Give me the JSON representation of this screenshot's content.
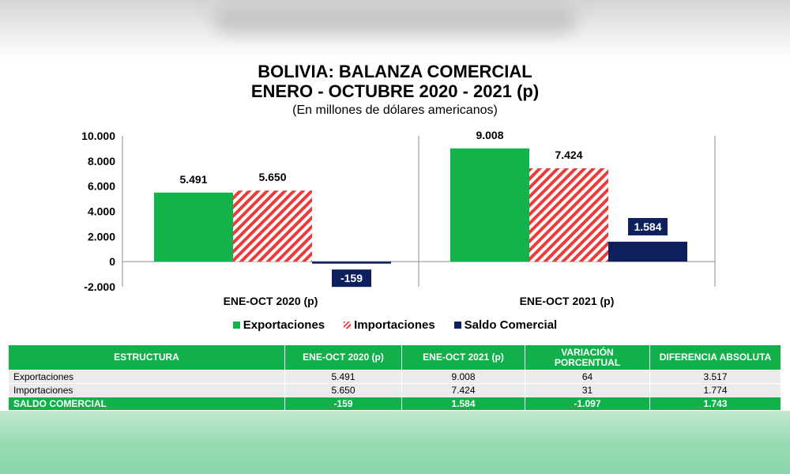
{
  "header": {
    "title_line1": "BOLIVIA: BALANZA COMERCIAL",
    "title_line2": "ENERO - OCTUBRE 2020 - 2021 (p)",
    "subtitle": "(En millones de dólares americanos)"
  },
  "chart_data": {
    "type": "bar",
    "categories": [
      "ENE-OCT 2020 (p)",
      "ENE-OCT 2021 (p)"
    ],
    "series": [
      {
        "name": "Exportaciones",
        "values": [
          5491,
          9008
        ],
        "labels": [
          "5.491",
          "9.008"
        ],
        "color": "#13b34b",
        "pattern": "solid"
      },
      {
        "name": "Importaciones",
        "values": [
          5650,
          7424
        ],
        "labels": [
          "5.650",
          "7.424"
        ],
        "color": "#ec3b3b",
        "pattern": "hatched"
      },
      {
        "name": "Saldo Comercial",
        "values": [
          -159,
          1584
        ],
        "labels": [
          "-159",
          "1.584"
        ],
        "color": "#0d1f5c",
        "pattern": "solid"
      }
    ],
    "ylim": [
      -2000,
      10000
    ],
    "yticks": [
      10000,
      8000,
      6000,
      4000,
      2000,
      0,
      -2000
    ],
    "ytick_labels": [
      "10.000",
      "8.000",
      "6.000",
      "4.000",
      "2.000",
      "0",
      "-2.000"
    ],
    "legend_position": "bottom",
    "grid": false
  },
  "table": {
    "headers": [
      "ESTRUCTURA",
      "ENE-OCT 2020 (p)",
      "ENE-OCT 2021 (p)",
      "VARIACIÓN PORCENTUAL",
      "DIFERENCIA ABSOLUTA"
    ],
    "rows": [
      {
        "label": "Exportaciones",
        "values": [
          "5.491",
          "9.008",
          "64",
          "3.517"
        ]
      },
      {
        "label": "Importaciones",
        "values": [
          "5.650",
          "7.424",
          "31",
          "1.774"
        ]
      }
    ],
    "total": {
      "label": "SALDO COMERCIAL",
      "values": [
        "-159",
        "1.584",
        "-1.097",
        "1.743"
      ]
    }
  }
}
